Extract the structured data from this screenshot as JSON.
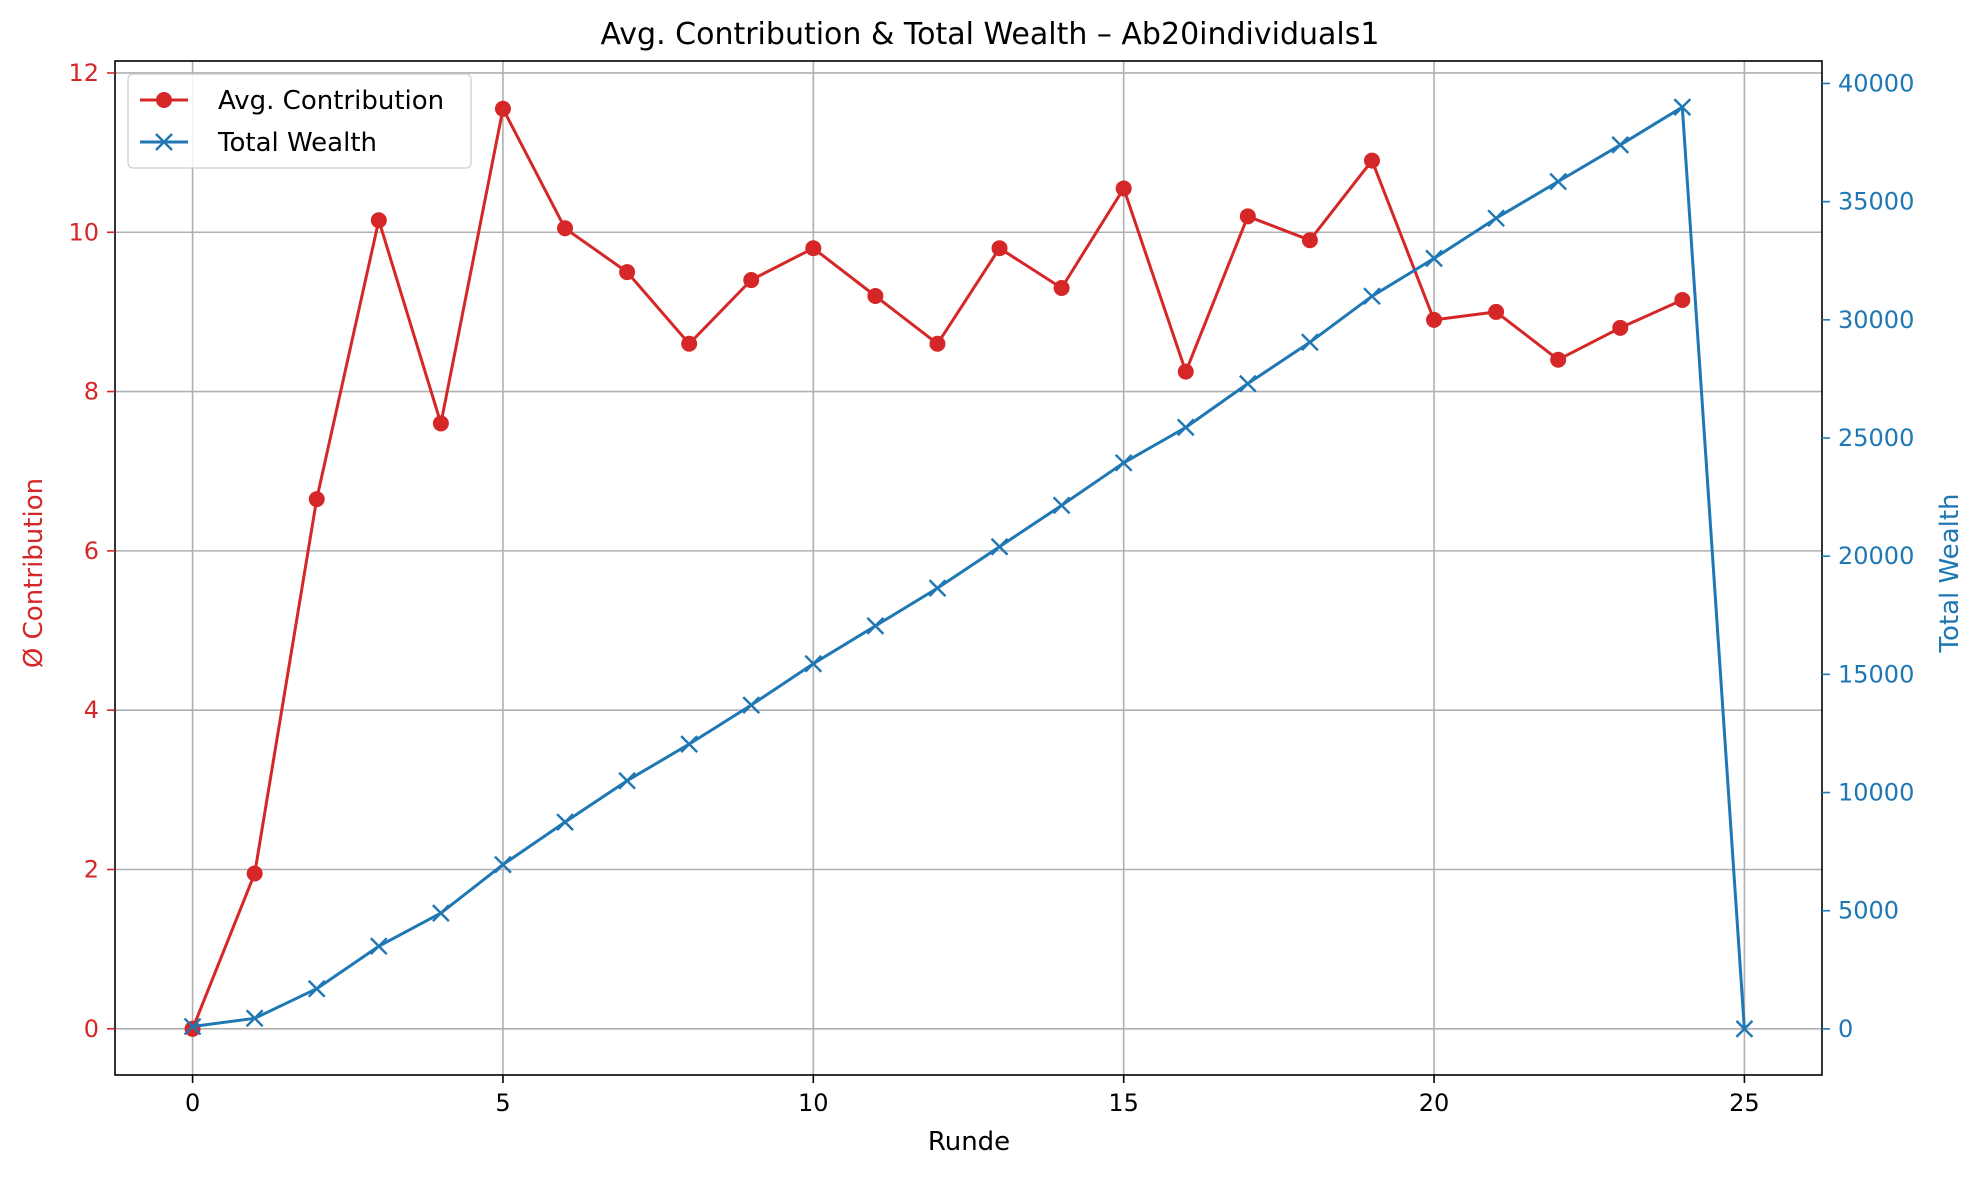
{
  "chart_data": {
    "type": "line",
    "title": "Avg. Contribution & Total Wealth – Ab20individuals1",
    "xlabel": "Runde",
    "ylabel_left": "Ø Contribution",
    "ylabel_right": "Total Wealth",
    "xlim": [
      -1.25,
      26.25
    ],
    "ylim_left": [
      -0.58,
      12.15
    ],
    "ylim_right": [
      -1950,
      40950
    ],
    "x_ticks": [
      0,
      5,
      10,
      15,
      20,
      25
    ],
    "y_ticks_left": [
      0,
      2,
      4,
      6,
      8,
      10,
      12
    ],
    "y_ticks_right": [
      0,
      5000,
      10000,
      15000,
      20000,
      25000,
      30000,
      35000,
      40000
    ],
    "grid": true,
    "legend_position": "top-left",
    "series": [
      {
        "name": "Avg. Contribution",
        "axis": "left",
        "color": "#d62728",
        "marker": "circle",
        "x": [
          0,
          1,
          2,
          3,
          4,
          5,
          6,
          7,
          8,
          9,
          10,
          11,
          12,
          13,
          14,
          15,
          16,
          17,
          18,
          19,
          20,
          21,
          22,
          23,
          24
        ],
        "values": [
          0,
          1.95,
          6.65,
          10.15,
          7.6,
          11.55,
          10.05,
          9.5,
          8.6,
          9.4,
          9.8,
          9.2,
          8.6,
          9.8,
          9.3,
          10.55,
          8.25,
          10.2,
          9.9,
          10.9,
          8.9,
          9.0,
          8.4,
          8.8,
          9.15
        ]
      },
      {
        "name": "Total Wealth",
        "axis": "right",
        "color": "#1f77b4",
        "marker": "x",
        "x": [
          0,
          1,
          2,
          3,
          4,
          5,
          6,
          7,
          8,
          9,
          10,
          11,
          12,
          13,
          14,
          15,
          16,
          17,
          18,
          19,
          20,
          21,
          22,
          23,
          24,
          25
        ],
        "values": [
          100,
          450,
          1700,
          3500,
          4900,
          6950,
          8750,
          10500,
          12050,
          13700,
          15450,
          17050,
          18650,
          20400,
          22150,
          23950,
          25450,
          27300,
          29050,
          31000,
          32600,
          34300,
          35850,
          37400,
          39000,
          0
        ]
      }
    ]
  }
}
